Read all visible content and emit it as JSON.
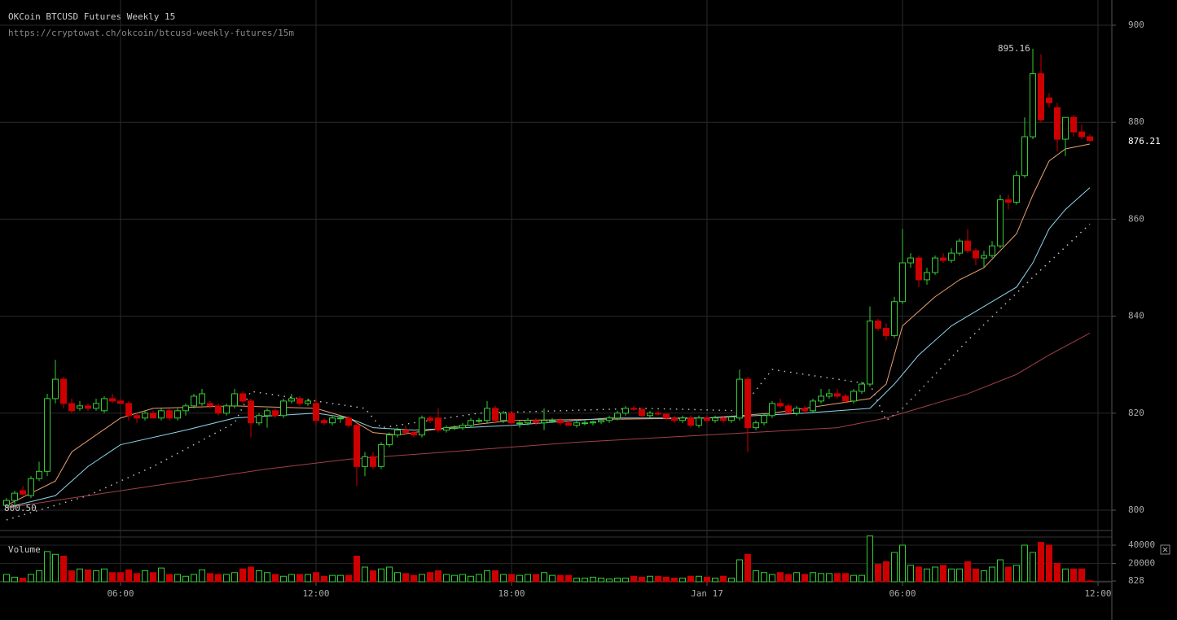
{
  "chart_data": {
    "type": "candlestick",
    "title": "OKCoin BTCUSD Futures Weekly 15",
    "subtitle": "https://cryptowat.ch/okcoin/btcusd-weekly-futures/15m",
    "volume_label": "Volume",
    "annotations": [
      "895.16",
      "800.50",
      "876.21"
    ],
    "up_color": "#33cc33",
    "down_color": "#cc0000",
    "grid": true,
    "xlim": [
      2.3,
      36.425
    ],
    "xticks": [
      {
        "value": 6,
        "label": "06:00"
      },
      {
        "value": 12,
        "label": "12:00"
      },
      {
        "value": 18,
        "label": "18:00"
      },
      {
        "value": 24,
        "label": "Jan 17"
      },
      {
        "value": 30,
        "label": "06:00"
      },
      {
        "value": 36,
        "label": "12:00"
      }
    ],
    "ylim": [
      796.14,
      905.2
    ],
    "yticks": [
      800,
      820,
      840,
      860,
      880,
      900
    ],
    "volume_ylim": [
      0,
      48900
    ],
    "volume_yticks": [
      828,
      20000,
      40000
    ],
    "x": [
      2.5,
      2.75,
      3,
      3.25,
      3.5,
      3.75,
      4,
      4.25,
      4.5,
      4.75,
      5,
      5.25,
      5.5,
      5.75,
      6,
      6.25,
      6.5,
      6.75,
      7,
      7.25,
      7.5,
      7.75,
      8,
      8.25,
      8.5,
      8.75,
      9,
      9.25,
      9.5,
      9.75,
      10,
      10.25,
      10.5,
      10.75,
      11,
      11.25,
      11.5,
      11.75,
      12,
      12.25,
      12.5,
      12.75,
      13,
      13.25,
      13.5,
      13.75,
      14,
      14.25,
      14.5,
      14.75,
      15,
      15.25,
      15.5,
      15.75,
      16,
      16.25,
      16.5,
      16.75,
      17,
      17.25,
      17.5,
      17.75,
      18,
      18.25,
      18.5,
      18.75,
      19,
      19.25,
      19.5,
      19.75,
      20,
      20.25,
      20.5,
      20.75,
      21,
      21.25,
      21.5,
      21.75,
      22,
      22.25,
      22.5,
      22.75,
      23,
      23.25,
      23.5,
      23.75,
      24,
      24.25,
      24.5,
      24.75,
      25,
      25.25,
      25.5,
      25.75,
      26,
      26.25,
      26.5,
      26.75,
      27,
      27.25,
      27.5,
      27.75,
      28,
      28.25,
      28.5,
      28.75,
      29,
      29.25,
      29.5,
      29.75,
      30,
      30.25,
      30.5,
      30.75,
      31,
      31.25,
      31.5,
      31.75,
      32,
      32.25,
      32.5,
      32.75,
      33,
      33.25,
      33.5,
      33.75,
      34,
      34.25,
      34.5,
      34.75,
      35,
      35.25,
      35.5,
      35.75
    ],
    "open": [
      801,
      802,
      804,
      803,
      806.5,
      808,
      823,
      827,
      822,
      821,
      821.5,
      821,
      820.5,
      823,
      822.5,
      822,
      819.5,
      819,
      820,
      819,
      820.5,
      819,
      820.5,
      821.5,
      822,
      822,
      821.5,
      820,
      821.5,
      824,
      822.5,
      818,
      819.5,
      820.5,
      819.5,
      822.5,
      823,
      822,
      822,
      818.5,
      818,
      819,
      819,
      817.5,
      809,
      811,
      809,
      813.5,
      815.5,
      816.5,
      816,
      815.5,
      819,
      819,
      816.5,
      817,
      817,
      817.5,
      818.5,
      818.5,
      821,
      818.5,
      820,
      818,
      818,
      818.5,
      818,
      818.5,
      818.5,
      818,
      817.5,
      818,
      818,
      818.2,
      818.5,
      819,
      820,
      821,
      820.8,
      819.5,
      820,
      819.8,
      819,
      818.5,
      819,
      817.5,
      819,
      818.5,
      819,
      818.5,
      819,
      827,
      817,
      818,
      819.5,
      822,
      821.5,
      820,
      821,
      820.5,
      822.5,
      823.5,
      824,
      823.5,
      822.5,
      824.5,
      826,
      839,
      837.5,
      836,
      843,
      851,
      852,
      847.5,
      849,
      852,
      851.5,
      853,
      855.5,
      853.5,
      852,
      852.5,
      854.5,
      864,
      863.5,
      869,
      877,
      890,
      885,
      883,
      876.5,
      881,
      878,
      877
    ],
    "high": [
      802.5,
      804,
      805,
      807,
      810,
      824,
      831,
      827.5,
      823,
      822.5,
      822,
      823,
      823.5,
      824,
      823,
      822.5,
      820,
      820.5,
      820.5,
      821,
      821,
      821,
      822,
      824,
      825,
      822.5,
      822,
      822,
      825,
      824.5,
      823,
      820,
      821,
      821,
      823,
      824,
      823.5,
      823,
      823,
      819,
      819.5,
      819.5,
      819.5,
      818,
      812,
      812,
      814,
      816,
      817,
      817.5,
      816.5,
      819.5,
      819.5,
      821,
      817.5,
      817.5,
      818,
      819,
      819,
      822.5,
      821.5,
      820.5,
      820.5,
      818.5,
      819,
      819,
      821,
      819,
      819,
      818.5,
      818.5,
      818.5,
      818.5,
      818.8,
      819.5,
      820.5,
      821.5,
      821.5,
      821,
      820.5,
      820.5,
      820,
      819.5,
      819.5,
      819.5,
      819.5,
      819.5,
      819.5,
      819.5,
      819.5,
      829,
      827.5,
      818.5,
      820,
      822.5,
      823,
      822,
      821.5,
      821.5,
      823,
      825,
      825,
      825,
      824,
      825,
      826.5,
      842,
      839.5,
      838.5,
      844,
      858,
      853,
      852.5,
      850,
      852.5,
      853,
      854,
      856,
      858,
      854,
      853.5,
      855.5,
      865,
      865,
      870,
      881,
      895.16,
      894,
      886,
      884,
      881,
      881.5,
      879.5,
      877.5
    ],
    "low": [
      800.5,
      801,
      803,
      802.5,
      806,
      807,
      822,
      821,
      820,
      820.5,
      820.5,
      820.5,
      820,
      822,
      822,
      818.5,
      818,
      818.5,
      819,
      818.5,
      818.5,
      818.5,
      819.5,
      821,
      821.5,
      821,
      819.5,
      819.5,
      821,
      822,
      815,
      817.5,
      817,
      819,
      819,
      822,
      821.5,
      821.5,
      817.5,
      817.5,
      817.5,
      818,
      817,
      805,
      807,
      808.5,
      808.5,
      813,
      815,
      815.5,
      815,
      815,
      818,
      816,
      816,
      816.5,
      816.5,
      817,
      818,
      818,
      818,
      818,
      817.5,
      817,
      817.5,
      817.5,
      816.5,
      818,
      817.5,
      817.5,
      817,
      817.5,
      817.5,
      817.8,
      818,
      818.5,
      819.5,
      820.5,
      819,
      819,
      819.5,
      818.5,
      818,
      818,
      817,
      817,
      818,
      818,
      818,
      818,
      818.5,
      812,
      816.5,
      817.5,
      819,
      821,
      820,
      819.5,
      820,
      820,
      822,
      823,
      823,
      822,
      822,
      824,
      825.5,
      837,
      835,
      835.5,
      842.5,
      850,
      846,
      846.5,
      848.5,
      851,
      851,
      852.5,
      853,
      850.5,
      850,
      852,
      854,
      862,
      863,
      868.5,
      876.5,
      880,
      883,
      874,
      873,
      877,
      876.5,
      876
    ],
    "close": [
      802,
      803.5,
      803.3,
      806.5,
      808,
      823,
      827,
      822,
      820.5,
      821.5,
      821,
      822,
      823,
      822.5,
      822,
      819.5,
      819,
      820,
      819,
      820.5,
      819,
      820.5,
      821.5,
      823.5,
      824,
      821.5,
      820,
      821.5,
      824,
      822.5,
      818,
      819.5,
      820.5,
      819.5,
      822.5,
      823,
      822,
      822.5,
      818.5,
      818,
      819,
      819,
      817.5,
      809,
      811,
      809,
      813.5,
      815.5,
      816.5,
      816,
      815.5,
      819,
      818.5,
      816.5,
      817,
      817,
      817.5,
      818.5,
      818.5,
      821,
      818.5,
      820,
      818,
      818,
      818.5,
      818,
      818.5,
      818.5,
      818,
      817.5,
      818,
      818,
      818.2,
      818.5,
      819,
      820,
      821,
      820.8,
      819.5,
      820,
      819.8,
      819,
      818.5,
      819,
      817.5,
      819,
      818.5,
      819,
      818.5,
      819.2,
      827,
      817,
      818,
      819.5,
      822,
      821.5,
      820,
      821,
      820.5,
      822.5,
      823.5,
      824,
      823.5,
      822.5,
      824.5,
      826,
      839,
      837.5,
      836,
      843,
      851,
      852,
      847.5,
      849,
      852,
      851.5,
      853,
      855.5,
      853.5,
      852,
      852.5,
      854.5,
      864,
      863.5,
      869,
      877,
      890,
      880.5,
      884,
      876.5,
      881,
      878,
      877,
      876.21
    ],
    "volume": [
      8000,
      5000,
      4000,
      8000,
      12000,
      33000,
      30000,
      28000,
      12000,
      14000,
      13000,
      12000,
      14000,
      10000,
      10000,
      13000,
      9000,
      12000,
      10000,
      15000,
      8000,
      8000,
      6000,
      8000,
      13000,
      9000,
      8000,
      8000,
      10000,
      14000,
      16000,
      12000,
      10000,
      8000,
      6000,
      8000,
      8000,
      8000,
      10000,
      6000,
      7000,
      7000,
      7000,
      28000,
      16000,
      12000,
      14000,
      16000,
      10000,
      9000,
      7000,
      8000,
      10000,
      12000,
      8000,
      7000,
      8000,
      6000,
      8000,
      12000,
      12000,
      8000,
      8000,
      7000,
      8000,
      8000,
      10000,
      7000,
      7000,
      7000,
      4000,
      4000,
      5000,
      4000,
      3000,
      4000,
      4000,
      6000,
      5000,
      6000,
      6000,
      5000,
      4000,
      4000,
      6000,
      6000,
      5000,
      4000,
      6000,
      4000,
      24000,
      30000,
      12000,
      10000,
      8000,
      10000,
      8000,
      10000,
      8000,
      10000,
      9000,
      9000,
      9000,
      9000,
      7000,
      7000,
      50000,
      19000,
      22000,
      32000,
      40000,
      18000,
      16000,
      14000,
      16000,
      18000,
      14000,
      14000,
      22000,
      14000,
      12000,
      16000,
      24000,
      16000,
      18000,
      40000,
      32000,
      43000,
      40000,
      20000,
      14000,
      14000,
      14000,
      1000
    ],
    "series": [
      {
        "color": "#e8a070",
        "style": "solid",
        "x": [
          2.5,
          4,
          4.5,
          6,
          7,
          9.5,
          12,
          13,
          13.75,
          14.5,
          16,
          18,
          24,
          26,
          28,
          29,
          29.5,
          30,
          31,
          31.75,
          32.5,
          33.5,
          34,
          34.5,
          35,
          35.75
        ],
        "values": [
          801,
          806,
          812,
          819,
          821,
          821.5,
          821,
          819,
          816,
          815.5,
          817,
          818.5,
          819,
          820,
          822,
          823,
          826,
          838,
          844,
          847.5,
          850,
          857,
          865,
          872,
          874.5,
          875.5
        ]
      },
      {
        "color": "#8fd3e8",
        "style": "solid",
        "x": [
          2.5,
          4,
          4.5,
          5,
          6,
          8,
          9.5,
          12,
          13,
          13.75,
          15,
          18,
          21,
          24,
          27,
          29,
          29.75,
          30.5,
          31.5,
          32.5,
          33.5,
          34,
          34.5,
          35,
          35.75
        ],
        "values": [
          800.5,
          803,
          806,
          809,
          813.5,
          816.5,
          819,
          820,
          819,
          817,
          816.5,
          817.5,
          819,
          819,
          820,
          821,
          826,
          832,
          838,
          842,
          846,
          851,
          858,
          862,
          866.5
        ]
      },
      {
        "color": "#a0404a",
        "style": "solid",
        "x": [
          2.5,
          5,
          8,
          10.5,
          13,
          16,
          20,
          24,
          28,
          29.5,
          32,
          33.5,
          34.5,
          35.75
        ],
        "values": [
          800.5,
          803,
          806,
          808.5,
          810.5,
          812,
          814,
          815.5,
          817,
          819,
          824,
          828,
          832,
          836.5
        ]
      },
      {
        "color": "#bbbbbb",
        "style": "dotted",
        "x": [
          2.5,
          5,
          7,
          9.5,
          10,
          12,
          13.5,
          14,
          17,
          22,
          25,
          26,
          29,
          29.5,
          30,
          32,
          34,
          35.75
        ],
        "values": [
          798,
          803,
          809,
          818,
          824.5,
          822.5,
          821,
          817,
          820,
          821,
          820.5,
          829,
          826,
          818.5,
          821,
          835,
          848,
          859
        ]
      }
    ]
  }
}
